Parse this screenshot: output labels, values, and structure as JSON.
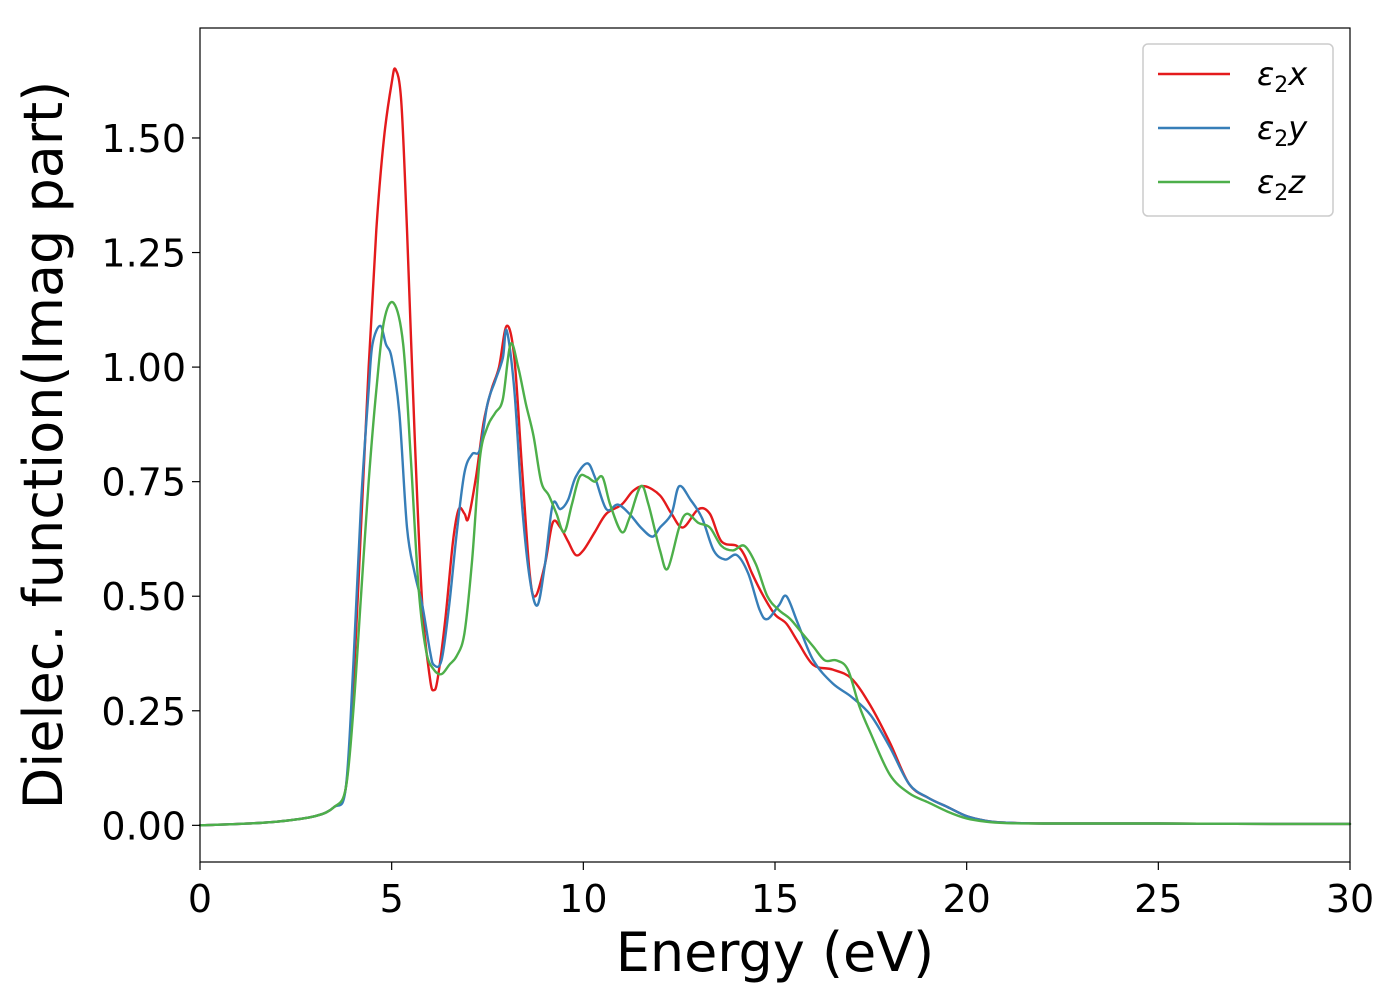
{
  "chart_data": {
    "type": "line",
    "xlabel": "Energy (eV)",
    "ylabel": "Dielec. function(Imag part)",
    "xlim": [
      0,
      30
    ],
    "ylim": [
      -0.08,
      1.74
    ],
    "xticks": [
      0,
      5,
      10,
      15,
      20,
      25,
      30
    ],
    "yticks": [
      "0.00",
      "0.25",
      "0.50",
      "0.75",
      "1.00",
      "1.25",
      "1.50"
    ],
    "grid": false,
    "legend_position": "top-right",
    "series": [
      {
        "name": "ε2x",
        "legend": {
          "base": "ε",
          "sub": "2",
          "var": "x"
        },
        "color": "#e41a1c",
        "x": [
          0,
          1,
          2,
          3,
          3.5,
          3.8,
          4.0,
          4.2,
          4.4,
          4.6,
          4.8,
          5.0,
          5.1,
          5.25,
          5.4,
          5.6,
          5.8,
          6.0,
          6.1,
          6.2,
          6.4,
          6.6,
          6.75,
          6.9,
          7.0,
          7.2,
          7.4,
          7.6,
          7.8,
          8.0,
          8.2,
          8.4,
          8.6,
          8.75,
          9.0,
          9.2,
          9.4,
          9.6,
          9.8,
          10.0,
          10.3,
          10.6,
          11.0,
          11.3,
          11.6,
          12.0,
          12.3,
          12.6,
          13.0,
          13.3,
          13.6,
          14.0,
          14.2,
          14.4,
          14.7,
          15.0,
          15.3,
          15.6,
          16.0,
          16.5,
          17.0,
          17.5,
          18.0,
          18.5,
          19.0,
          19.5,
          20.0,
          20.5,
          21,
          22,
          25,
          28,
          30
        ],
        "y": [
          0.0,
          0.003,
          0.008,
          0.02,
          0.04,
          0.08,
          0.3,
          0.65,
          1.0,
          1.3,
          1.5,
          1.62,
          1.65,
          1.58,
          1.3,
          0.85,
          0.48,
          0.32,
          0.295,
          0.32,
          0.45,
          0.62,
          0.69,
          0.68,
          0.67,
          0.76,
          0.88,
          0.95,
          1.0,
          1.09,
          1.02,
          0.78,
          0.55,
          0.5,
          0.57,
          0.66,
          0.65,
          0.62,
          0.59,
          0.6,
          0.64,
          0.68,
          0.7,
          0.73,
          0.74,
          0.72,
          0.68,
          0.65,
          0.69,
          0.68,
          0.62,
          0.61,
          0.59,
          0.55,
          0.5,
          0.46,
          0.44,
          0.4,
          0.35,
          0.34,
          0.32,
          0.26,
          0.18,
          0.09,
          0.06,
          0.04,
          0.02,
          0.01,
          0.006,
          0.004,
          0.004,
          0.003,
          0.003
        ]
      },
      {
        "name": "ε2y",
        "legend": {
          "base": "ε",
          "sub": "2",
          "var": "y"
        },
        "color": "#377eb8",
        "x": [
          0,
          1,
          2,
          3,
          3.5,
          3.8,
          4.0,
          4.2,
          4.4,
          4.5,
          4.7,
          4.85,
          5.0,
          5.2,
          5.4,
          5.6,
          5.8,
          6.0,
          6.1,
          6.3,
          6.5,
          6.7,
          6.9,
          7.1,
          7.3,
          7.5,
          7.7,
          7.9,
          8.0,
          8.2,
          8.4,
          8.6,
          8.8,
          9.0,
          9.2,
          9.4,
          9.6,
          9.8,
          10.1,
          10.3,
          10.6,
          10.9,
          11.2,
          11.5,
          11.8,
          12.0,
          12.3,
          12.5,
          12.8,
          13.1,
          13.4,
          13.7,
          14.0,
          14.3,
          14.6,
          14.8,
          15.1,
          15.3,
          15.6,
          16.0,
          16.5,
          17.0,
          17.5,
          18.0,
          18.5,
          19.0,
          19.5,
          20.0,
          20.5,
          21,
          22,
          25,
          28,
          30
        ],
        "y": [
          0.0,
          0.003,
          0.008,
          0.02,
          0.04,
          0.08,
          0.35,
          0.7,
          0.95,
          1.05,
          1.09,
          1.05,
          1.02,
          0.9,
          0.65,
          0.55,
          0.48,
          0.38,
          0.35,
          0.36,
          0.48,
          0.64,
          0.77,
          0.81,
          0.82,
          0.92,
          0.97,
          1.02,
          1.08,
          0.95,
          0.7,
          0.54,
          0.48,
          0.57,
          0.7,
          0.69,
          0.71,
          0.76,
          0.79,
          0.76,
          0.69,
          0.7,
          0.68,
          0.65,
          0.63,
          0.65,
          0.68,
          0.74,
          0.71,
          0.67,
          0.6,
          0.58,
          0.59,
          0.55,
          0.47,
          0.45,
          0.48,
          0.5,
          0.44,
          0.36,
          0.31,
          0.28,
          0.24,
          0.17,
          0.09,
          0.06,
          0.04,
          0.02,
          0.01,
          0.006,
          0.004,
          0.004,
          0.003,
          0.003
        ]
      },
      {
        "name": "ε2z",
        "legend": {
          "base": "ε",
          "sub": "2",
          "var": "z"
        },
        "color": "#4daf4a",
        "x": [
          0,
          1,
          2,
          3,
          3.5,
          3.8,
          4.0,
          4.2,
          4.4,
          4.6,
          4.8,
          5.05,
          5.3,
          5.5,
          5.7,
          5.9,
          6.1,
          6.3,
          6.5,
          6.7,
          6.9,
          7.1,
          7.3,
          7.5,
          7.7,
          7.9,
          8.1,
          8.3,
          8.5,
          8.7,
          8.9,
          9.1,
          9.3,
          9.5,
          9.7,
          9.9,
          10.1,
          10.3,
          10.5,
          10.7,
          11.0,
          11.2,
          11.5,
          11.7,
          12.0,
          12.2,
          12.5,
          12.7,
          13.0,
          13.3,
          13.6,
          13.9,
          14.2,
          14.5,
          14.8,
          15.1,
          15.4,
          15.7,
          16.0,
          16.3,
          16.6,
          16.9,
          17.2,
          17.5,
          18.0,
          18.5,
          19.0,
          19.5,
          20.0,
          20.5,
          21,
          22,
          25,
          28,
          30
        ],
        "y": [
          0.0,
          0.003,
          0.008,
          0.02,
          0.04,
          0.08,
          0.25,
          0.5,
          0.75,
          0.95,
          1.1,
          1.14,
          1.05,
          0.8,
          0.52,
          0.38,
          0.34,
          0.33,
          0.35,
          0.37,
          0.42,
          0.58,
          0.8,
          0.87,
          0.9,
          0.93,
          1.05,
          1.0,
          0.92,
          0.85,
          0.75,
          0.72,
          0.68,
          0.64,
          0.7,
          0.76,
          0.76,
          0.75,
          0.76,
          0.7,
          0.64,
          0.67,
          0.74,
          0.7,
          0.6,
          0.56,
          0.65,
          0.68,
          0.66,
          0.65,
          0.61,
          0.6,
          0.61,
          0.57,
          0.5,
          0.47,
          0.45,
          0.42,
          0.39,
          0.36,
          0.36,
          0.34,
          0.26,
          0.2,
          0.11,
          0.07,
          0.05,
          0.03,
          0.015,
          0.008,
          0.005,
          0.004,
          0.004,
          0.003,
          0.003
        ]
      }
    ]
  }
}
